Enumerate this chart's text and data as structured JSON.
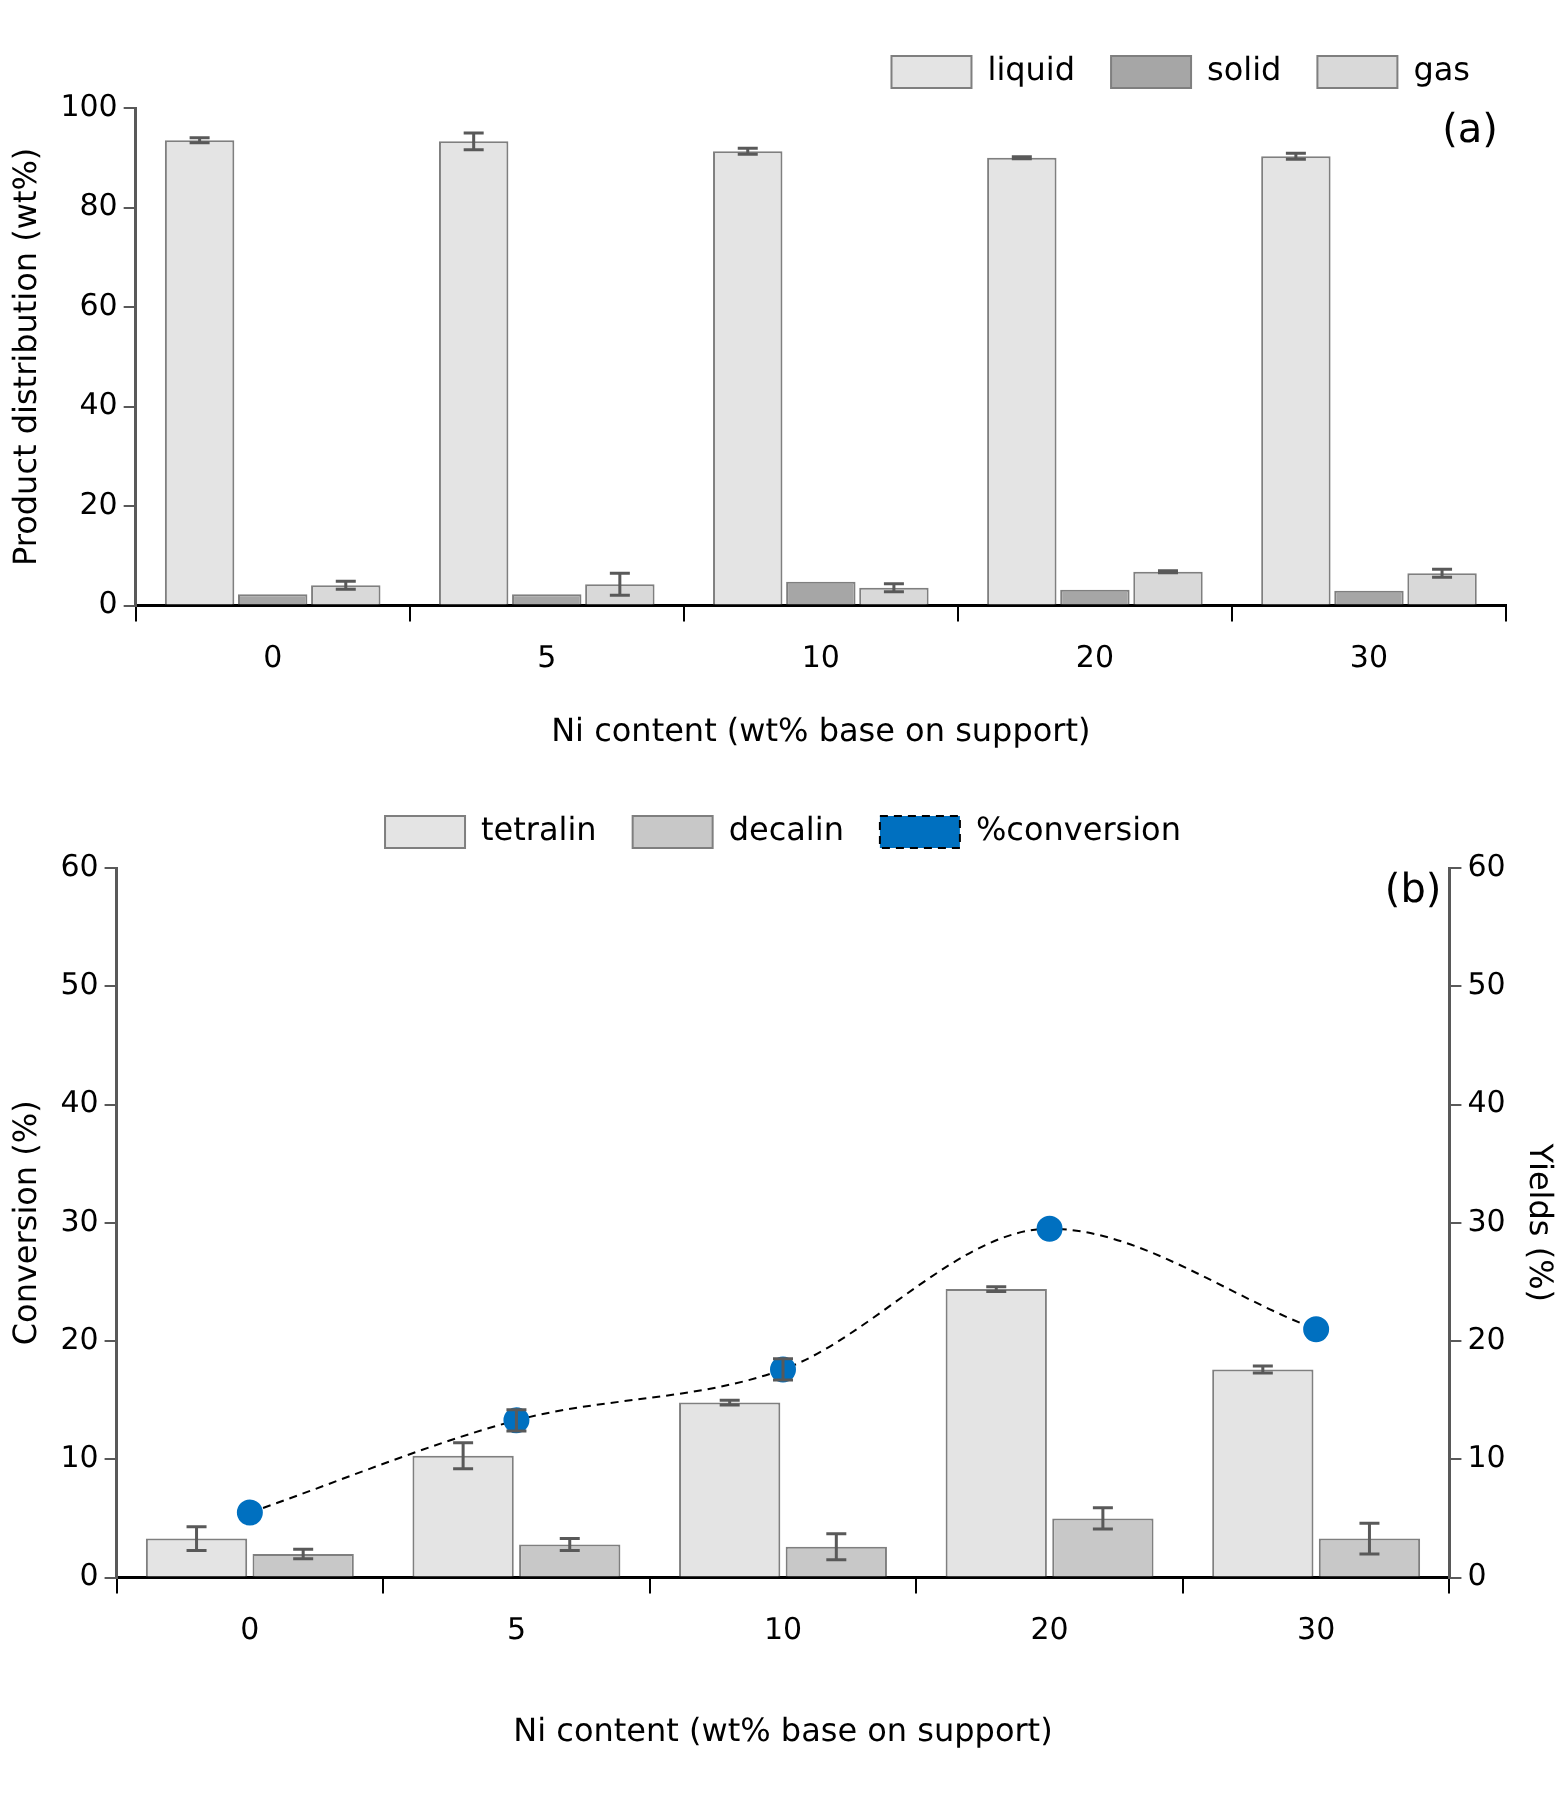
{
  "chart_data": [
    {
      "type": "bar",
      "xlabel": "Ni content (wt% base on support)",
      "ylabel": "Product distribution (wt%)",
      "categories": [
        "0",
        "5",
        "10",
        "20",
        "30"
      ],
      "ylim": [
        0,
        100
      ],
      "yticks": [
        0,
        20,
        40,
        60,
        80,
        100
      ],
      "legend": "top right",
      "grid": false,
      "annotations": [
        "(a)"
      ],
      "series": [
        {
          "name": "liquid",
          "color": "#e4e4e4",
          "values": [
            93.5,
            93.3,
            91.3,
            90.0,
            90.3
          ],
          "errors": [
            0.5,
            1.7,
            0.6,
            0.2,
            0.6
          ]
        },
        {
          "name": "solid",
          "color": "#a6a6a6",
          "values": [
            2.3,
            2.3,
            4.8,
            3.2,
            3.0
          ]
        },
        {
          "name": "gas",
          "color": "#d9d9d9",
          "values": [
            4.1,
            4.3,
            3.6,
            6.8,
            6.5
          ],
          "errors": [
            0.8,
            2.2,
            0.8,
            0.2,
            0.8
          ]
        }
      ]
    },
    {
      "type": "bar",
      "xlabel": "Ni content (wt% base on support)",
      "ylabel": "Conversion (%)",
      "y2label": "Yields (%)",
      "categories": [
        "0",
        "5",
        "10",
        "20",
        "30"
      ],
      "ylim": [
        0,
        60
      ],
      "yticks": [
        0,
        10,
        20,
        30,
        40,
        50,
        60
      ],
      "y2lim": [
        0,
        60
      ],
      "y2ticks": [
        0,
        10,
        20,
        30,
        40,
        50,
        60
      ],
      "legend": "top",
      "grid": false,
      "annotations": [
        "(b)"
      ],
      "series": [
        {
          "name": "tetralin",
          "color": "#e4e4e4",
          "values": [
            3.3,
            10.3,
            14.8,
            24.4,
            17.6
          ],
          "errors": [
            1.0,
            1.1,
            0.2,
            0.2,
            0.3
          ]
        },
        {
          "name": "decalin",
          "color": "#c8c8c8",
          "values": [
            2.0,
            2.8,
            2.6,
            5.0,
            3.3
          ],
          "errors": [
            0.4,
            0.5,
            1.1,
            0.9,
            1.3
          ]
        },
        {
          "name": "%conversion",
          "type": "line",
          "color": "#0070c0",
          "marker": "circle",
          "line_style": "dashed",
          "values": [
            5.5,
            13.3,
            17.6,
            29.5,
            21.0
          ],
          "errors": [
            null,
            0.9,
            0.9,
            null,
            null
          ]
        }
      ]
    }
  ]
}
